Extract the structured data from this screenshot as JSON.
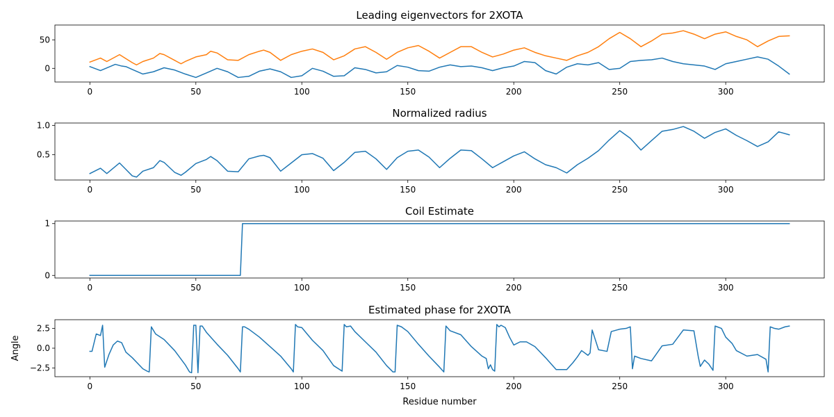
{
  "chart_data": [
    {
      "type": "line",
      "title": "Leading eigenvectors for 2XOTA",
      "xlabel": "",
      "ylabel": "",
      "xlim": [
        -16.5,
        346.5
      ],
      "ylim": [
        -24,
        76
      ],
      "xticks": [
        0,
        50,
        100,
        150,
        200,
        250,
        300
      ],
      "yticks": [
        0,
        50
      ],
      "colors": [
        "#1f77b4",
        "#ff7f0e"
      ],
      "series": [
        {
          "name": "",
          "color": "#1f77b4",
          "x": [
            0,
            5,
            12,
            15,
            17,
            20,
            25,
            30,
            35,
            40,
            45,
            50,
            55,
            60,
            65,
            70,
            75,
            80,
            85,
            90,
            95,
            100,
            105,
            110,
            115,
            120,
            125,
            130,
            135,
            140,
            145,
            150,
            155,
            160,
            165,
            170,
            175,
            180,
            185,
            190,
            195,
            200,
            205,
            210,
            215,
            220,
            225,
            230,
            235,
            240,
            245,
            250,
            255,
            260,
            265,
            270,
            275,
            280,
            285,
            290,
            295,
            300,
            305,
            310,
            315,
            320,
            325,
            330
          ],
          "y": [
            3,
            -4,
            7,
            4,
            3,
            -2,
            -10,
            -6,
            1,
            -3,
            -10,
            -16,
            -8,
            0,
            -6,
            -16,
            -14,
            -5,
            -1,
            -6,
            -16,
            -13,
            0,
            -5,
            -14,
            -13,
            1,
            -2,
            -8,
            -6,
            5,
            2,
            -4,
            -5,
            2,
            6,
            3,
            4,
            1,
            -4,
            1,
            4,
            12,
            10,
            -4,
            -10,
            2,
            8,
            6,
            10,
            -2,
            0,
            12,
            14,
            15,
            18,
            12,
            8,
            6,
            4,
            -2,
            8,
            12,
            16,
            20,
            16,
            4,
            -10
          ]
        },
        {
          "name": "",
          "color": "#ff7f0e",
          "x": [
            0,
            5,
            8,
            14,
            17,
            20,
            22,
            25,
            30,
            33,
            35,
            40,
            43,
            45,
            50,
            55,
            57,
            60,
            65,
            70,
            75,
            80,
            82,
            85,
            90,
            95,
            100,
            105,
            110,
            115,
            120,
            125,
            130,
            135,
            140,
            145,
            150,
            155,
            160,
            165,
            170,
            175,
            180,
            185,
            190,
            195,
            200,
            205,
            210,
            215,
            220,
            225,
            230,
            235,
            240,
            245,
            250,
            255,
            260,
            265,
            270,
            275,
            280,
            285,
            290,
            295,
            300,
            305,
            310,
            315,
            320,
            325,
            330
          ],
          "y": [
            11,
            18,
            12,
            24,
            17,
            10,
            6,
            12,
            18,
            26,
            24,
            14,
            8,
            12,
            20,
            24,
            30,
            27,
            15,
            14,
            24,
            30,
            32,
            28,
            14,
            24,
            30,
            34,
            28,
            15,
            22,
            34,
            38,
            28,
            16,
            28,
            36,
            40,
            30,
            18,
            28,
            38,
            38,
            28,
            20,
            25,
            32,
            36,
            28,
            22,
            18,
            14,
            22,
            28,
            38,
            52,
            63,
            52,
            38,
            48,
            60,
            62,
            66,
            60,
            52,
            60,
            64,
            56,
            50,
            38,
            48,
            56,
            57
          ]
        }
      ]
    },
    {
      "type": "line",
      "title": "Normalized radius",
      "xlabel": "",
      "ylabel": "",
      "xlim": [
        -16.5,
        346.5
      ],
      "ylim": [
        0.07,
        1.04
      ],
      "xticks": [
        0,
        50,
        100,
        150,
        200,
        250,
        300
      ],
      "yticks": [
        0.5,
        1.0
      ],
      "yticklabels": [
        "0.5",
        "1.0"
      ],
      "colors": [
        "#1f77b4"
      ],
      "series": [
        {
          "name": "",
          "color": "#1f77b4",
          "x": [
            0,
            5,
            8,
            14,
            17,
            20,
            22,
            25,
            30,
            33,
            35,
            40,
            43,
            45,
            50,
            55,
            57,
            60,
            65,
            70,
            75,
            80,
            82,
            85,
            90,
            95,
            100,
            105,
            110,
            115,
            120,
            125,
            130,
            135,
            140,
            145,
            150,
            155,
            160,
            165,
            170,
            175,
            180,
            185,
            190,
            195,
            200,
            205,
            210,
            215,
            220,
            225,
            230,
            235,
            240,
            245,
            250,
            255,
            260,
            265,
            270,
            275,
            280,
            285,
            290,
            295,
            300,
            305,
            310,
            315,
            320,
            325,
            330
          ],
          "y": [
            0.18,
            0.27,
            0.18,
            0.36,
            0.25,
            0.14,
            0.12,
            0.22,
            0.28,
            0.4,
            0.37,
            0.2,
            0.15,
            0.2,
            0.35,
            0.42,
            0.47,
            0.4,
            0.22,
            0.21,
            0.43,
            0.48,
            0.49,
            0.45,
            0.22,
            0.36,
            0.5,
            0.52,
            0.44,
            0.23,
            0.37,
            0.54,
            0.56,
            0.43,
            0.25,
            0.45,
            0.56,
            0.58,
            0.46,
            0.28,
            0.44,
            0.58,
            0.57,
            0.43,
            0.28,
            0.38,
            0.48,
            0.55,
            0.43,
            0.33,
            0.28,
            0.19,
            0.33,
            0.44,
            0.57,
            0.75,
            0.91,
            0.78,
            0.58,
            0.74,
            0.9,
            0.93,
            0.98,
            0.9,
            0.78,
            0.88,
            0.94,
            0.83,
            0.74,
            0.64,
            0.72,
            0.89,
            0.84
          ]
        }
      ]
    },
    {
      "type": "line",
      "title": "Coil Estimate",
      "xlabel": "",
      "ylabel": "",
      "xlim": [
        -16.5,
        346.5
      ],
      "ylim": [
        -0.05,
        1.05
      ],
      "xticks": [
        0,
        50,
        100,
        150,
        200,
        250,
        300
      ],
      "yticks": [
        0,
        1
      ],
      "colors": [
        "#1f77b4"
      ],
      "series": [
        {
          "name": "",
          "color": "#1f77b4",
          "x": [
            0,
            71,
            72,
            330
          ],
          "y": [
            0,
            0,
            1,
            1
          ]
        }
      ]
    },
    {
      "type": "line",
      "title": "Estimated phase for 2XOTA",
      "xlabel": "Residue number",
      "ylabel": "Angle",
      "xlim": [
        -16.5,
        346.5
      ],
      "ylim": [
        -3.6,
        3.6
      ],
      "xticks": [
        0,
        50,
        100,
        150,
        200,
        250,
        300
      ],
      "yticks": [
        -2.5,
        0.0,
        2.5
      ],
      "yticklabels": [
        "−2.5",
        "0.0",
        "2.5"
      ],
      "colors": [
        "#1f77b4"
      ],
      "series": [
        {
          "name": "",
          "color": "#1f77b4",
          "x": [
            0,
            1,
            3,
            5,
            6,
            7,
            9,
            11,
            13,
            15,
            17,
            20,
            25,
            27,
            28,
            29,
            31,
            35,
            40,
            45,
            47,
            48,
            49,
            50,
            51,
            52,
            53,
            55,
            60,
            65,
            70,
            71,
            72,
            73,
            75,
            80,
            85,
            90,
            95,
            96,
            97,
            98,
            100,
            105,
            110,
            115,
            119,
            120,
            121,
            123,
            125,
            130,
            135,
            140,
            143,
            144,
            145,
            147,
            150,
            155,
            160,
            165,
            166,
            167,
            168,
            170,
            175,
            180,
            185,
            187,
            188,
            189,
            190,
            191,
            192,
            193,
            194,
            196,
            198,
            200,
            203,
            206,
            210,
            215,
            220,
            225,
            228,
            230,
            232,
            235,
            236,
            237,
            240,
            244,
            246,
            250,
            253,
            255,
            256,
            257,
            260,
            265,
            270,
            275,
            280,
            285,
            287,
            288,
            290,
            292,
            294,
            295,
            296,
            298,
            300,
            303,
            305,
            310,
            315,
            319,
            320,
            321,
            323,
            325,
            328,
            330
          ],
          "y": [
            -0.4,
            -0.4,
            1.8,
            1.6,
            2.9,
            -2.4,
            -0.8,
            0.4,
            0.9,
            0.7,
            -0.5,
            -1.2,
            -2.6,
            -2.9,
            -3.0,
            2.7,
            1.8,
            1.1,
            -0.3,
            -2.1,
            -3.0,
            -3.1,
            2.9,
            2.9,
            -3.1,
            2.8,
            2.8,
            2.0,
            0.5,
            -0.9,
            -2.6,
            -3.0,
            2.7,
            2.7,
            2.4,
            1.4,
            0.2,
            -1.0,
            -2.6,
            -3.0,
            3.0,
            2.7,
            2.6,
            1.0,
            -0.3,
            -2.2,
            -2.9,
            3.0,
            2.7,
            2.8,
            2.1,
            0.8,
            -0.5,
            -2.2,
            -3.0,
            -3.0,
            2.9,
            2.7,
            2.1,
            0.5,
            -1.0,
            -2.4,
            -2.7,
            -3.0,
            2.8,
            2.2,
            1.7,
            0.2,
            -1.0,
            -1.3,
            -2.6,
            -2.1,
            -2.7,
            -2.9,
            3.0,
            2.7,
            2.9,
            2.6,
            1.4,
            0.4,
            0.8,
            0.8,
            0.2,
            -1.2,
            -2.7,
            -2.7,
            -1.8,
            -1.1,
            -0.3,
            -0.9,
            -0.6,
            2.3,
            -0.2,
            -0.4,
            2.1,
            2.4,
            2.5,
            2.7,
            -2.6,
            -1.0,
            -1.3,
            -1.6,
            0.3,
            0.5,
            2.3,
            2.2,
            -1.0,
            -2.3,
            -1.5,
            -2.0,
            -2.8,
            2.8,
            2.7,
            2.5,
            1.4,
            0.6,
            -0.3,
            -1.0,
            -0.8,
            -1.4,
            -3.0,
            2.7,
            2.5,
            2.4,
            2.7,
            2.8
          ]
        }
      ]
    }
  ]
}
